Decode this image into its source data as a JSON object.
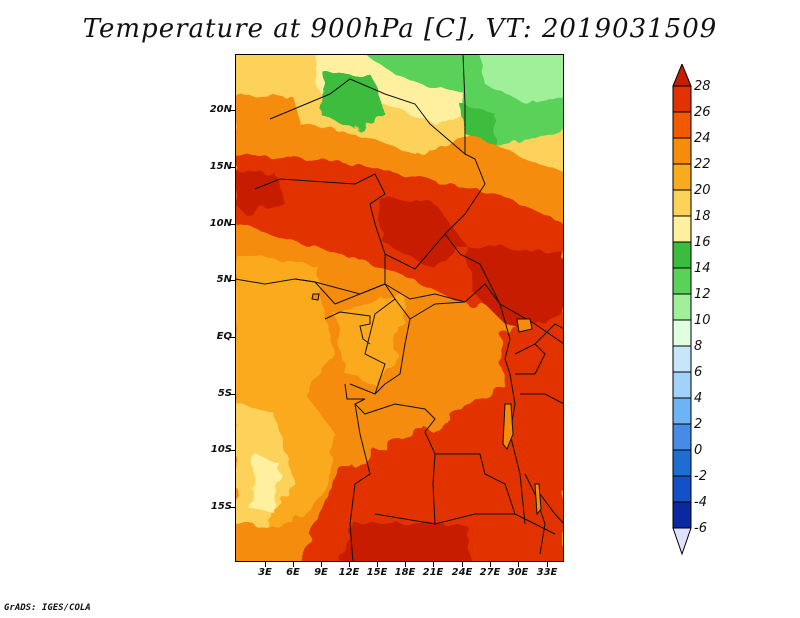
{
  "title": "Temperature at 900hPa [C], VT: 2019031509",
  "credit": "GrADS: IGES/COLA",
  "map": {
    "lat_labels": [
      "20N",
      "15N",
      "10N",
      "5N",
      "EQ",
      "5S",
      "10S",
      "15S"
    ],
    "lon_labels": [
      "3E",
      "6E",
      "9E",
      "12E",
      "15E",
      "18E",
      "21E",
      "24E",
      "27E",
      "30E",
      "33E"
    ]
  },
  "colorbar": {
    "labels": [
      "28",
      "26",
      "24",
      "22",
      "20",
      "18",
      "16",
      "14",
      "12",
      "10",
      "8",
      "6",
      "4",
      "2",
      "0",
      "-2",
      "-4",
      "-6"
    ],
    "colors": [
      "#c81e00",
      "#e13200",
      "#f05a00",
      "#f58c0a",
      "#faaa1e",
      "#fdd25a",
      "#fff0a0",
      "#3cbc3c",
      "#5ad25a",
      "#a0f09a",
      "#e0ffe0",
      "#c8e6fa",
      "#a0d2fa",
      "#6eb4f5",
      "#468ce6",
      "#1e6ed2",
      "#1450c8",
      "#0a28a0",
      "#000064"
    ],
    "min_color": "#000064",
    "max_color": "#c81e00",
    "lower_arrow_color": "#e0e0ff"
  }
}
